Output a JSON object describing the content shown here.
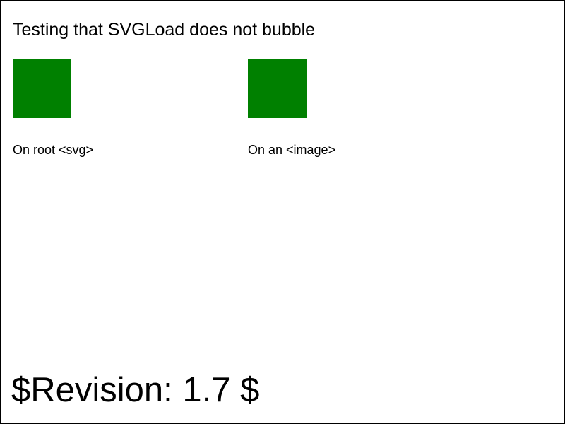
{
  "title": "Testing that SVGLoad does not bubble",
  "tests": [
    {
      "caption": "On root <svg>",
      "result_color": "#008000"
    },
    {
      "caption": "On an <image>",
      "result_color": "#008000"
    }
  ],
  "revision": "$Revision: 1.7 $"
}
